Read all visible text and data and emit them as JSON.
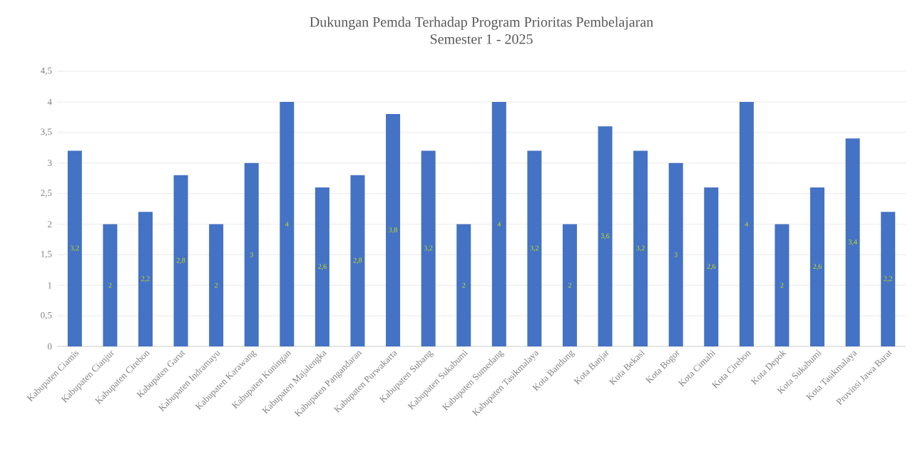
{
  "chart_data": {
    "type": "bar",
    "title": "Dukungan Pemda Terhadap Program Prioritas Pembelajaran",
    "subtitle": "Semester 1 - 2025",
    "categories": [
      "Kabupaten Ciamis",
      "Kabupaten Cianjur",
      "Kabupaten Cirebon",
      "Kabupaten Garut",
      "Kabupaten Indramayu",
      "Kabupaten Karawang",
      "Kabupaten Kuningan",
      "Kabupaten Majalengka",
      "Kabupaten Pangandaran",
      "Kabupaten Purwakarta",
      "Kabupaten Subang",
      "Kabupaten Sukabumi",
      "Kabupaten Sumedang",
      "Kabupaten Tasikmalaya",
      "Kota Bandung",
      "Kota Banjar",
      "Kota Bekasi",
      "Kota Bogor",
      "Kota Cimahi",
      "Kota Cirebon",
      "Kota Depok",
      "Kota Sukabumi",
      "Kota Tasikmalaya",
      "Provinsi Jawa Barat"
    ],
    "values": [
      3.2,
      2,
      2.2,
      2.8,
      2,
      3,
      4,
      2.6,
      2.8,
      3.8,
      3.2,
      2,
      4,
      3.2,
      2,
      3.6,
      3.2,
      3,
      2.6,
      4,
      2,
      2.6,
      3.4,
      2.2
    ],
    "value_labels": [
      "3,2",
      "2",
      "2,2",
      "2,8",
      "2",
      "3",
      "4",
      "2,6",
      "2,8",
      "3,8",
      "3,2",
      "2",
      "4",
      "3,2",
      "2",
      "3,6",
      "3,2",
      "3",
      "2,6",
      "4",
      "2",
      "2,6",
      "3,4",
      "2,2"
    ],
    "color": "#4472c4",
    "ylim": [
      0,
      4.5
    ],
    "yticks": [
      0,
      {
        "value": 0.5,
        "label": "0,5"
      },
      1,
      {
        "value": 1.5,
        "label": "1,5"
      },
      2,
      {
        "value": 2.5,
        "label": "2,5"
      },
      3,
      {
        "value": 3.5,
        "label": "3,5"
      },
      4,
      {
        "value": 4.5,
        "label": "4,5"
      }
    ],
    "grid": "y"
  }
}
